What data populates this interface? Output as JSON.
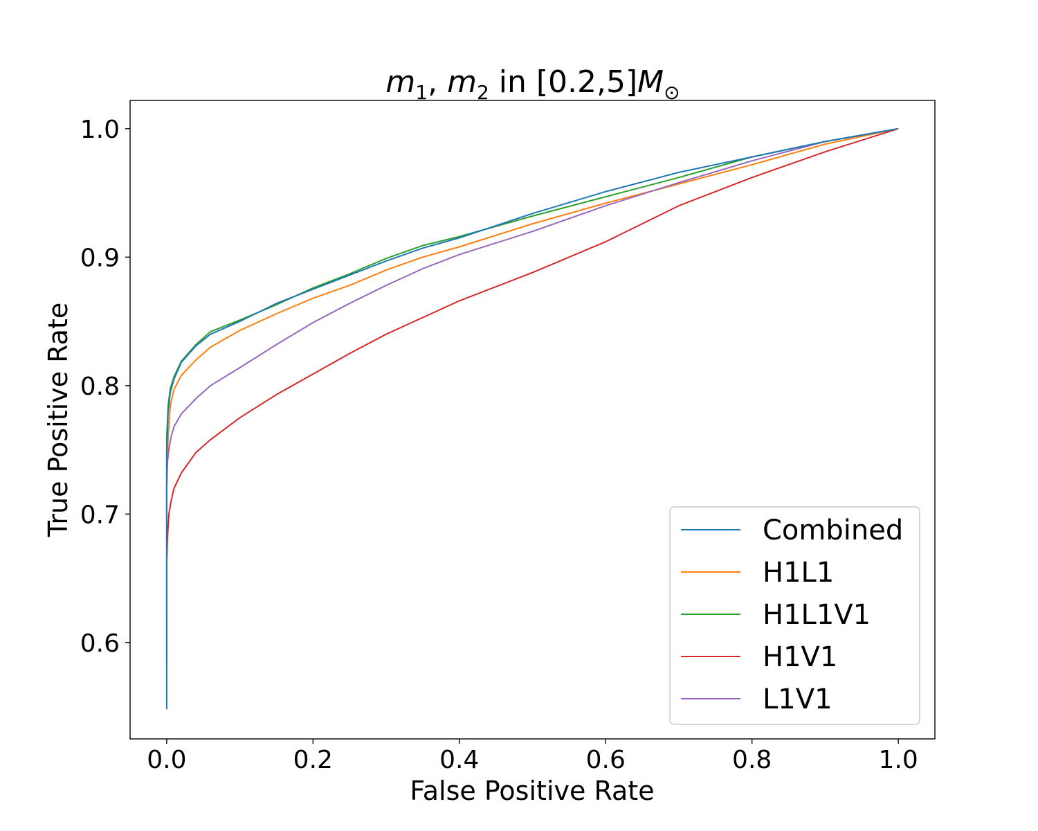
{
  "chart_data": {
    "type": "line",
    "title": "m1, m2 in [0.2,5]M⊙",
    "title_parts": {
      "m": "m",
      "sub1": "1",
      "sep": ", ",
      "sub2": "2",
      "range": " in [0.2,5]",
      "mass": "M",
      "sun": "⊙"
    },
    "xlabel": "False Positive Rate",
    "ylabel": "True Positive Rate",
    "xlim": [
      -0.05,
      1.05
    ],
    "ylim": [
      0.525,
      1.022
    ],
    "xticks": [
      0.0,
      0.2,
      0.4,
      0.6,
      0.8,
      1.0
    ],
    "xtick_labels": [
      "0.0",
      "0.2",
      "0.4",
      "0.6",
      "0.8",
      "1.0"
    ],
    "yticks": [
      0.6,
      0.7,
      0.8,
      0.9,
      1.0
    ],
    "ytick_labels": [
      "0.6",
      "0.7",
      "0.8",
      "0.9",
      "1.0"
    ],
    "legend_position": "lower-right",
    "series": [
      {
        "name": "Combined",
        "color": "#1f77b4",
        "x": [
          0,
          0,
          0.002,
          0.005,
          0.01,
          0.02,
          0.04,
          0.06,
          0.1,
          0.15,
          0.2,
          0.25,
          0.3,
          0.35,
          0.4,
          0.5,
          0.6,
          0.7,
          0.8,
          0.9,
          1.0
        ],
        "y": [
          0.548,
          0.75,
          0.78,
          0.795,
          0.805,
          0.818,
          0.831,
          0.84,
          0.85,
          0.864,
          0.875,
          0.886,
          0.897,
          0.907,
          0.915,
          0.934,
          0.951,
          0.966,
          0.978,
          0.99,
          1.0
        ]
      },
      {
        "name": "H1L1",
        "color": "#ff7f0e",
        "x": [
          0,
          0,
          0.002,
          0.005,
          0.01,
          0.02,
          0.04,
          0.06,
          0.1,
          0.15,
          0.2,
          0.25,
          0.3,
          0.35,
          0.4,
          0.5,
          0.6,
          0.7,
          0.8,
          0.9,
          1.0
        ],
        "y": [
          0.62,
          0.72,
          0.76,
          0.785,
          0.797,
          0.808,
          0.82,
          0.83,
          0.843,
          0.856,
          0.868,
          0.878,
          0.89,
          0.9,
          0.908,
          0.926,
          0.942,
          0.957,
          0.972,
          0.988,
          1.0
        ]
      },
      {
        "name": "H1L1V1",
        "color": "#2ca02c",
        "x": [
          0,
          0,
          0.002,
          0.005,
          0.01,
          0.02,
          0.04,
          0.06,
          0.1,
          0.15,
          0.2,
          0.25,
          0.3,
          0.35,
          0.4,
          0.5,
          0.6,
          0.7,
          0.8,
          0.9,
          1.0
        ],
        "y": [
          0.7,
          0.76,
          0.785,
          0.798,
          0.807,
          0.819,
          0.832,
          0.842,
          0.851,
          0.863,
          0.876,
          0.887,
          0.899,
          0.909,
          0.916,
          0.932,
          0.947,
          0.962,
          0.978,
          0.99,
          1.0
        ]
      },
      {
        "name": "H1V1",
        "color": "#d62728",
        "x": [
          0,
          0,
          0.001,
          0.003,
          0.006,
          0.01,
          0.02,
          0.04,
          0.06,
          0.1,
          0.15,
          0.2,
          0.25,
          0.3,
          0.35,
          0.4,
          0.5,
          0.6,
          0.7,
          0.8,
          0.9,
          1.0
        ],
        "y": [
          0.585,
          0.66,
          0.68,
          0.7,
          0.71,
          0.72,
          0.732,
          0.748,
          0.758,
          0.775,
          0.793,
          0.809,
          0.825,
          0.84,
          0.853,
          0.866,
          0.888,
          0.912,
          0.94,
          0.962,
          0.982,
          1.0
        ]
      },
      {
        "name": "L1V1",
        "color": "#9467bd",
        "x": [
          0,
          0,
          0.001,
          0.003,
          0.006,
          0.01,
          0.02,
          0.04,
          0.06,
          0.1,
          0.15,
          0.2,
          0.25,
          0.3,
          0.35,
          0.4,
          0.5,
          0.6,
          0.7,
          0.8,
          0.9,
          1.0
        ],
        "y": [
          0.66,
          0.72,
          0.74,
          0.75,
          0.76,
          0.768,
          0.778,
          0.79,
          0.8,
          0.814,
          0.832,
          0.849,
          0.864,
          0.878,
          0.891,
          0.902,
          0.92,
          0.94,
          0.958,
          0.975,
          0.99,
          1.0
        ]
      }
    ]
  }
}
